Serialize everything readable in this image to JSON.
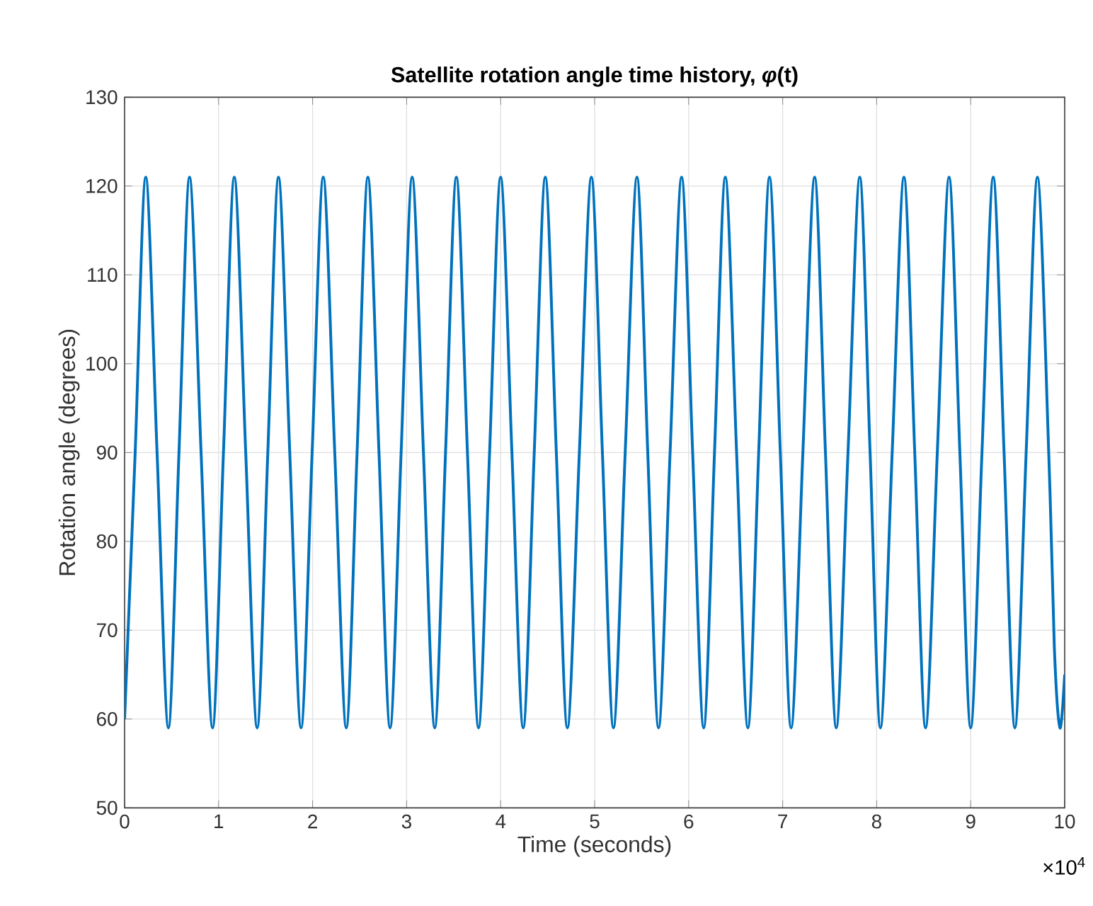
{
  "chart_data": {
    "type": "line",
    "title": "Satellite rotation angle time history, *φ*(t)",
    "xlabel": "Time (seconds)",
    "ylabel": "Rotation angle (degrees)",
    "annotations": [
      "×10$^{4}$"
    ],
    "x": [
      0,
      0.1125,
      0.225,
      0.3455,
      0.466,
      0.5785,
      0.691,
      0.8135,
      0.936,
      1.0515,
      1.167,
      1.2885,
      1.41,
      1.5235,
      1.637,
      1.757,
      1.877,
      1.995,
      2.113,
      2.2355,
      2.358,
      2.473,
      2.588,
      2.706,
      2.824,
      2.9415,
      3.059,
      3.179,
      3.299,
      3.414,
      3.529,
      3.647,
      3.765,
      3.8825,
      4,
      4.12,
      4.24,
      4.3575,
      4.475,
      4.5925,
      4.71,
      4.8375,
      4.965,
      5.0825,
      5.2,
      5.325,
      5.45,
      5.565,
      5.68,
      5.8025,
      5.925,
      6.0425,
      6.16,
      6.275,
      6.39,
      6.51,
      6.63,
      6.745,
      6.86,
      6.975,
      7.09,
      7.215,
      7.34,
      7.455,
      7.57,
      7.695,
      7.82,
      7.93,
      8.04,
      8.165,
      8.29,
      8.405,
      8.52,
      8.645,
      8.77,
      8.885,
      9,
      9.12,
      9.24,
      9.355,
      9.47,
      9.59,
      9.71,
      9.83,
      9.89,
      9.95,
      10
    ],
    "series": [
      {
        "color": "#0072bd",
        "values": [
          60,
          90,
          121,
          90,
          59,
          90,
          121,
          90,
          59,
          90,
          121,
          90,
          59,
          90,
          121,
          90,
          59,
          90,
          121,
          90,
          59,
          90,
          121,
          90,
          59,
          90,
          121,
          90,
          59,
          90,
          121,
          90,
          59,
          90,
          121,
          90,
          59,
          90,
          121,
          90,
          59,
          90,
          121,
          90,
          59,
          90,
          121,
          90,
          59,
          90,
          121,
          90,
          59,
          90,
          121,
          90,
          59,
          90,
          121,
          90,
          59,
          90,
          121,
          90,
          59,
          90,
          121,
          90,
          59,
          90,
          121,
          90,
          59,
          90,
          121,
          90,
          59,
          90,
          121,
          90,
          59,
          90,
          121,
          90,
          68,
          59,
          65
        ]
      }
    ],
    "xlim": [
      0,
      10
    ],
    "ylim": [
      50,
      130
    ],
    "xticks": [
      0,
      1,
      2,
      3,
      4,
      5,
      6,
      7,
      8,
      9,
      10
    ],
    "yticks": [
      50,
      60,
      70,
      80,
      90,
      100,
      110,
      120,
      130
    ],
    "grid": true,
    "line_style": "solid"
  }
}
